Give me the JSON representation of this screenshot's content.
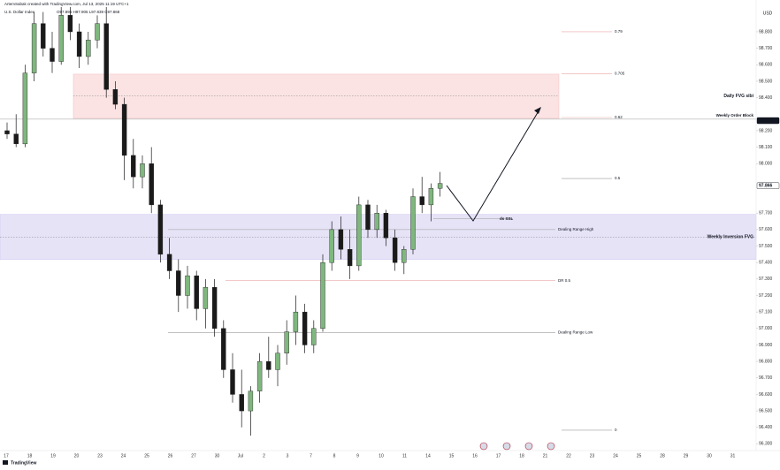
{
  "chart_data": {
    "type": "candlestick",
    "credit": "ArtemSabak created with TradingView.com, Jul 13, 2025 11:19 UTC+1",
    "title": "U.S. Dollar Index",
    "ohlc_text": "O97.896 H97.905 L97.839 C97.868",
    "currency": "USD",
    "brand": "TradingView",
    "up_color": "#7fb77e",
    "down_color": "#1a1a1a",
    "open": [
      98.2,
      98.18,
      98.12,
      98.55,
      98.85,
      98.7,
      98.62,
      98.9,
      98.8,
      98.65,
      98.75,
      98.85,
      98.45,
      98.36,
      98.05,
      97.92,
      98.0,
      97.75,
      97.45,
      97.35,
      97.2,
      97.32,
      97.12,
      97.25,
      97.0,
      96.75,
      96.6,
      96.5,
      96.62,
      96.8,
      96.75,
      96.85,
      96.98,
      97.1,
      96.9,
      97.0,
      97.4,
      97.6,
      97.48,
      97.38,
      97.75,
      97.6,
      97.7,
      97.55,
      97.4,
      97.48,
      97.8,
      97.75,
      97.85
    ],
    "high": [
      98.25,
      98.3,
      98.6,
      98.92,
      98.92,
      98.8,
      98.95,
      98.95,
      98.85,
      98.8,
      98.9,
      98.95,
      98.5,
      98.4,
      98.15,
      98.05,
      98.1,
      97.78,
      97.55,
      97.42,
      97.38,
      97.35,
      97.3,
      97.3,
      97.05,
      96.85,
      96.75,
      96.65,
      96.85,
      96.95,
      96.9,
      97.05,
      97.2,
      97.15,
      97.05,
      97.45,
      97.65,
      97.68,
      97.6,
      97.8,
      97.78,
      97.75,
      97.72,
      97.6,
      97.5,
      97.85,
      97.92,
      97.88,
      97.95
    ],
    "low": [
      98.15,
      98.1,
      98.1,
      98.5,
      98.65,
      98.55,
      98.6,
      98.75,
      98.58,
      98.6,
      98.7,
      98.4,
      98.33,
      97.9,
      97.85,
      97.85,
      97.7,
      97.4,
      97.3,
      97.1,
      97.12,
      97.05,
      97.0,
      96.95,
      96.7,
      96.55,
      96.4,
      96.35,
      96.55,
      96.7,
      96.65,
      96.78,
      96.9,
      96.85,
      96.85,
      96.98,
      97.35,
      97.42,
      97.3,
      97.35,
      97.55,
      97.55,
      97.5,
      97.35,
      97.33,
      97.45,
      97.7,
      97.65,
      97.8
    ],
    "close": [
      98.18,
      98.12,
      98.55,
      98.85,
      98.7,
      98.62,
      98.9,
      98.8,
      98.65,
      98.75,
      98.85,
      98.45,
      98.36,
      98.05,
      97.92,
      98.0,
      97.75,
      97.45,
      97.35,
      97.2,
      97.32,
      97.12,
      97.25,
      97.0,
      96.75,
      96.6,
      96.5,
      96.62,
      96.8,
      96.75,
      96.85,
      96.98,
      97.1,
      96.9,
      97.0,
      97.4,
      97.6,
      97.48,
      97.38,
      97.75,
      97.6,
      97.7,
      97.55,
      97.4,
      97.48,
      97.8,
      97.75,
      97.85,
      97.88
    ],
    "ylim": [
      96.27,
      98.95
    ],
    "yticks": [
      {
        "value": 96.3,
        "label": "96.300"
      },
      {
        "value": 96.4,
        "label": "96.400"
      },
      {
        "value": 96.5,
        "label": "96.500"
      },
      {
        "value": 96.6,
        "label": "96.600"
      },
      {
        "value": 96.7,
        "label": "96.700"
      },
      {
        "value": 96.8,
        "label": "96.800"
      },
      {
        "value": 96.9,
        "label": "96.900"
      },
      {
        "value": 97.0,
        "label": "97.000"
      },
      {
        "value": 97.1,
        "label": "97.100"
      },
      {
        "value": 97.2,
        "label": "97.200"
      },
      {
        "value": 97.3,
        "label": "97.300"
      },
      {
        "value": 97.4,
        "label": "97.400"
      },
      {
        "value": 97.5,
        "label": "97.500"
      },
      {
        "value": 97.6,
        "label": "97.600"
      },
      {
        "value": 97.7,
        "label": "97.700"
      },
      {
        "value": 98.0,
        "label": "98.000"
      },
      {
        "value": 98.1,
        "label": "98.100"
      },
      {
        "value": 98.2,
        "label": "98.200"
      },
      {
        "value": 98.4,
        "label": "98.400"
      },
      {
        "value": 98.5,
        "label": "98.500"
      },
      {
        "value": 98.6,
        "label": "98.600"
      },
      {
        "value": 98.7,
        "label": "98.700"
      },
      {
        "value": 98.8,
        "label": "98.800"
      }
    ],
    "price_labels": [
      98.261,
      97.866
    ],
    "xtick_labels": [
      "17",
      "18",
      "19",
      "20",
      "23",
      "24",
      "25",
      "26",
      "27",
      "30",
      "Jul",
      "2",
      "3",
      "7",
      "8",
      "9",
      "10",
      "11",
      "14",
      "15",
      "16",
      "17",
      "18",
      "21",
      "22",
      "23",
      "24",
      "25",
      "28",
      "29",
      "30",
      "31"
    ],
    "zones": [
      {
        "top": 98.543,
        "bottom": 98.275,
        "mid": 98.41,
        "label": "Daily FVG sibi",
        "color": "#fbe3e3"
      },
      {
        "top": 97.692,
        "bottom": 97.419,
        "mid": 97.555,
        "label": "Weekly Inversion FVG",
        "color": "#e6e3f7"
      }
    ],
    "levels": [
      {
        "value": 98.8,
        "label": "0.79",
        "color": "#e06a6a"
      },
      {
        "value": 98.545,
        "label": "0.705",
        "color": "#e06a6a"
      },
      {
        "value": 98.28,
        "label": "0.62",
        "color": "#e06a6a"
      },
      {
        "value": 97.91,
        "label": "0.5",
        "color": "#131722"
      },
      {
        "value": 96.383,
        "label": "0",
        "color": "#131722"
      },
      {
        "value": 97.6,
        "label": "Dealing Range High",
        "color": "#131722"
      },
      {
        "value": 96.975,
        "label": "Dealing Range Low",
        "color": "#131722"
      },
      {
        "value": 97.29,
        "label": "DR 0.5",
        "color": "#e06a6a"
      },
      {
        "value": 97.665,
        "label": "ds SSL",
        "color": "#131722"
      },
      {
        "value": 98.27,
        "label": "Weekly Order Block",
        "color": "#131722"
      }
    ]
  }
}
